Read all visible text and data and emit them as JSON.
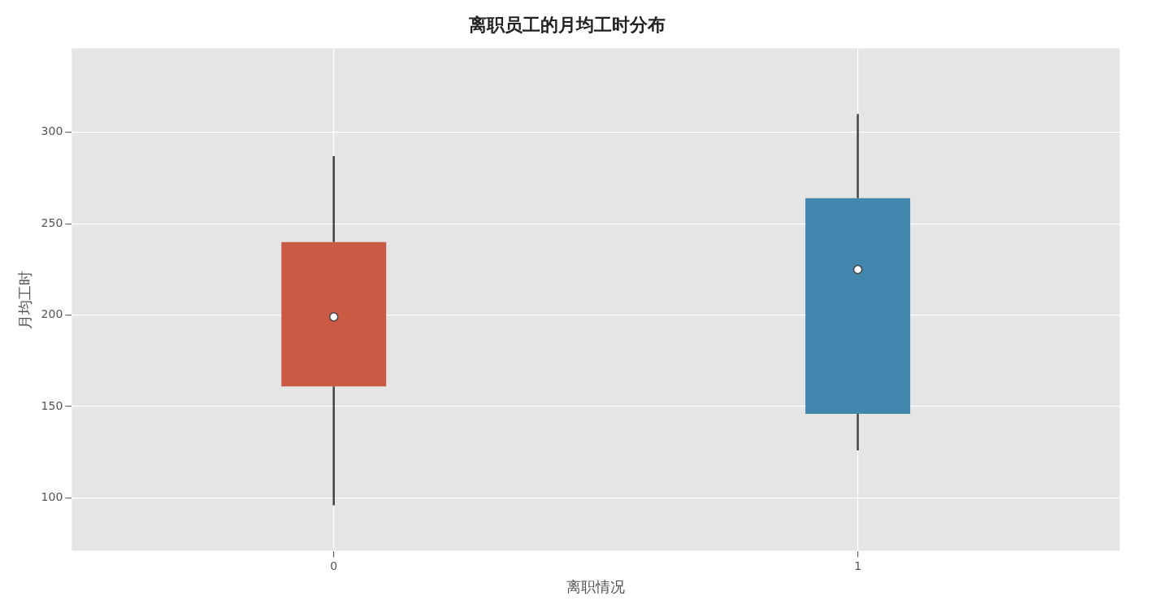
{
  "chart_data": {
    "type": "box",
    "title": "离职员工的月均工时分布",
    "xlabel": "离职情况",
    "ylabel": "月均工时",
    "categories": [
      "0",
      "1"
    ],
    "colors": [
      "#cb5a45",
      "#4285ad"
    ],
    "boxes": [
      {
        "low": 96,
        "q1": 161,
        "median": 199,
        "q3": 240,
        "high": 287
      },
      {
        "low": 126,
        "q1": 146,
        "median": 225,
        "q3": 264,
        "high": 310
      }
    ],
    "ylim": [
      71,
      346
    ],
    "yticks": [
      100,
      150,
      200,
      250,
      300
    ],
    "grid": true
  }
}
